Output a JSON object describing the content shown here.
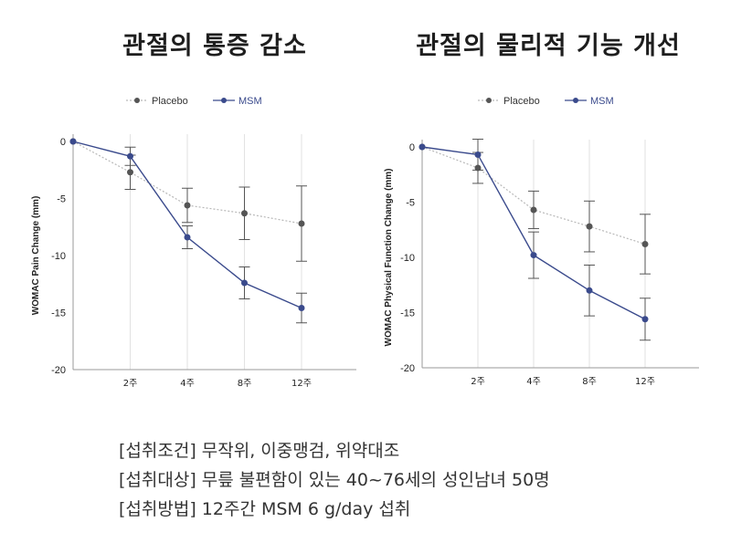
{
  "chart_data": [
    {
      "type": "line",
      "title": "관절의 통증 감소",
      "ylabel": "WOMAC Pain Change (mm)",
      "categories": [
        "0",
        "2주",
        "4주",
        "8주",
        "12주"
      ],
      "x_tick_labels": [
        "2주",
        "4주",
        "8주",
        "12주"
      ],
      "y_ticks": [
        "0",
        "-5",
        "-10",
        "-15",
        "-20"
      ],
      "ylim": [
        -20,
        0
      ],
      "legend_position": "top",
      "grid": "vertical",
      "series": [
        {
          "name": "Placebo",
          "color": "#555555",
          "style": "dotted",
          "values": [
            0,
            -2.7,
            -5.6,
            -6.3,
            -7.2
          ],
          "errors": [
            0,
            1.5,
            1.5,
            2.3,
            3.3
          ]
        },
        {
          "name": "MSM",
          "color": "#3a4a8c",
          "style": "solid",
          "values": [
            0,
            -1.3,
            -8.4,
            -12.4,
            -14.6
          ],
          "errors": [
            0,
            0.8,
            1.0,
            1.4,
            1.3
          ]
        }
      ]
    },
    {
      "type": "line",
      "title": "관절의 물리적 기능 개선",
      "ylabel": "WOMAC Physical Function Change (mm)",
      "categories": [
        "0",
        "2주",
        "4주",
        "8주",
        "12주"
      ],
      "x_tick_labels": [
        "2주",
        "4주",
        "8주",
        "12주"
      ],
      "y_ticks": [
        "0",
        "-5",
        "-10",
        "-15",
        "-20"
      ],
      "ylim": [
        -20,
        0
      ],
      "legend_position": "top",
      "grid": "vertical",
      "series": [
        {
          "name": "Placebo",
          "color": "#555555",
          "style": "dotted",
          "values": [
            0,
            -1.9,
            -5.7,
            -7.2,
            -8.8
          ],
          "errors": [
            0,
            1.4,
            1.7,
            2.3,
            2.7
          ]
        },
        {
          "name": "MSM",
          "color": "#3a4a8c",
          "style": "solid",
          "values": [
            0,
            -0.7,
            -9.8,
            -13.0,
            -15.6
          ],
          "errors": [
            0,
            1.4,
            2.1,
            2.3,
            1.9
          ]
        }
      ]
    }
  ],
  "notes": [
    "[섭취조건] 무작위, 이중맹검, 위약대조",
    "[섭취대상] 무릎 불편함이 있는 40~76세의 성인남녀 50명",
    "[섭취방법] 12주간 MSM 6 g/day 섭취"
  ]
}
